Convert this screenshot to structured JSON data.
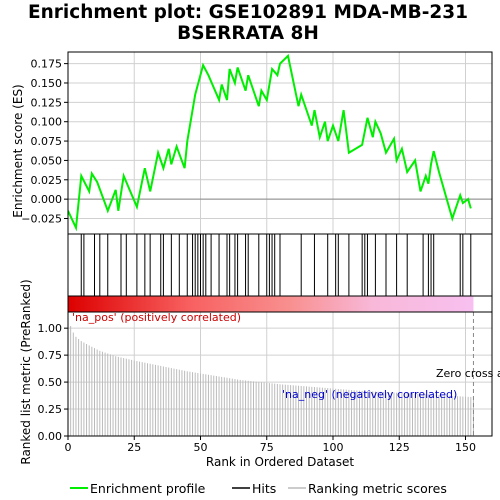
{
  "chart_data": [
    {
      "type": "line",
      "title_lines": [
        "Enrichment plot: GSE102891 MDA-MB-231",
        "BSERRATA 8H"
      ],
      "ylabel": "Enrichment score (ES)",
      "xlim": [
        0,
        160
      ],
      "ylim": [
        -0.045,
        0.19
      ],
      "yticks": [
        -0.025,
        0.0,
        0.025,
        0.05,
        0.075,
        0.1,
        0.125,
        0.15,
        0.175
      ],
      "ytick_labels": [
        "−0.025",
        "0.000",
        "0.025",
        "0.050",
        "0.075",
        "0.100",
        "0.125",
        "0.150",
        "0.175"
      ],
      "series": [
        {
          "name": "Enrichment profile",
          "color": "#00ee00",
          "x": [
            0,
            3,
            5,
            8,
            9,
            11,
            15,
            18,
            19,
            21,
            26,
            29,
            31,
            34,
            36,
            38,
            39,
            41,
            44,
            45,
            48,
            49,
            51,
            53,
            57,
            58,
            60,
            61,
            63,
            64,
            67,
            68,
            72,
            73,
            75,
            77,
            79,
            80,
            83,
            87,
            88,
            92,
            93,
            95,
            97,
            98,
            100,
            102,
            104,
            106,
            111,
            113,
            115,
            116,
            118,
            120,
            123,
            124,
            126,
            128,
            131,
            133,
            135,
            136,
            137,
            138,
            140,
            145,
            148,
            149,
            151,
            152
          ],
          "y": [
            -0.015,
            -0.037,
            0.03,
            0.01,
            0.033,
            0.022,
            -0.015,
            0.012,
            -0.015,
            0.03,
            -0.01,
            0.04,
            0.01,
            0.06,
            0.04,
            0.065,
            0.045,
            0.068,
            0.04,
            0.075,
            0.135,
            0.148,
            0.173,
            0.16,
            0.128,
            0.148,
            0.128,
            0.168,
            0.15,
            0.17,
            0.14,
            0.16,
            0.12,
            0.14,
            0.128,
            0.168,
            0.16,
            0.175,
            0.185,
            0.12,
            0.135,
            0.095,
            0.115,
            0.08,
            0.1,
            0.075,
            0.095,
            0.075,
            0.115,
            0.06,
            0.07,
            0.105,
            0.08,
            0.1,
            0.085,
            0.06,
            0.078,
            0.05,
            0.065,
            0.035,
            0.05,
            0.01,
            0.03,
            0.02,
            0.045,
            0.062,
            0.035,
            -0.025,
            0.005,
            -0.005,
            0.0,
            -0.012
          ]
        }
      ],
      "zero_line": true,
      "grid": true
    },
    {
      "type": "hits",
      "name": "Hits",
      "hit_ranks": [
        5,
        6,
        10,
        12,
        15,
        20,
        22,
        26,
        29,
        31,
        35,
        36,
        39,
        42,
        45,
        47,
        48,
        49,
        50,
        51,
        52,
        54,
        57,
        60,
        61,
        63,
        64,
        67,
        68,
        72,
        75,
        76,
        77,
        78,
        80,
        88,
        93,
        98,
        101,
        102,
        106,
        111,
        112,
        113,
        116,
        120,
        124,
        128,
        134,
        136,
        137,
        138,
        148,
        149,
        152
      ]
    },
    {
      "type": "area",
      "name": "Ranking metric scores",
      "ylabel": "Ranked list metric (PreRanked)",
      "xlabel": "Rank in Ordered Dataset",
      "ylim": [
        0,
        1.15
      ],
      "yticks": [
        0.0,
        0.25,
        0.5,
        0.75,
        1.0
      ],
      "ytick_labels": [
        "0.00",
        "0.25",
        "0.50",
        "0.75",
        "1.00"
      ],
      "xticks": [
        0,
        25,
        50,
        75,
        100,
        125,
        150
      ],
      "xtick_labels": [
        "0",
        "25",
        "50",
        "75",
        "100",
        "125",
        "150"
      ],
      "num_ranks": 153,
      "metric_at_ranks": [
        {
          "x": 1,
          "y": 1.02
        },
        {
          "x": 2,
          "y": 0.96
        },
        {
          "x": 3,
          "y": 0.92
        },
        {
          "x": 5,
          "y": 0.88
        },
        {
          "x": 8,
          "y": 0.84
        },
        {
          "x": 12,
          "y": 0.79
        },
        {
          "x": 18,
          "y": 0.74
        },
        {
          "x": 25,
          "y": 0.7
        },
        {
          "x": 35,
          "y": 0.65
        },
        {
          "x": 45,
          "y": 0.6
        },
        {
          "x": 55,
          "y": 0.56
        },
        {
          "x": 65,
          "y": 0.52
        },
        {
          "x": 80,
          "y": 0.48
        },
        {
          "x": 95,
          "y": 0.45
        },
        {
          "x": 110,
          "y": 0.42
        },
        {
          "x": 125,
          "y": 0.4
        },
        {
          "x": 140,
          "y": 0.38
        },
        {
          "x": 153,
          "y": 0.36
        }
      ],
      "zero_cross_at": 153,
      "annotations": {
        "pos": "'na_pos' (positively correlated)",
        "neg": "'na_neg' (negatively correlated)",
        "zero_cross": "Zero cross at 153"
      }
    }
  ],
  "legend": {
    "items": [
      {
        "label": "Enrichment profile",
        "color": "#00ee00"
      },
      {
        "label": "Hits",
        "color": "#000000"
      },
      {
        "label": "Ranking metric scores",
        "color": "#bbbbbb"
      }
    ]
  },
  "colors": {
    "pos_annotation": "#cc0000",
    "neg_annotation": "#0000cc",
    "plot_border": "#000000",
    "grid": "#d0d0d0"
  }
}
